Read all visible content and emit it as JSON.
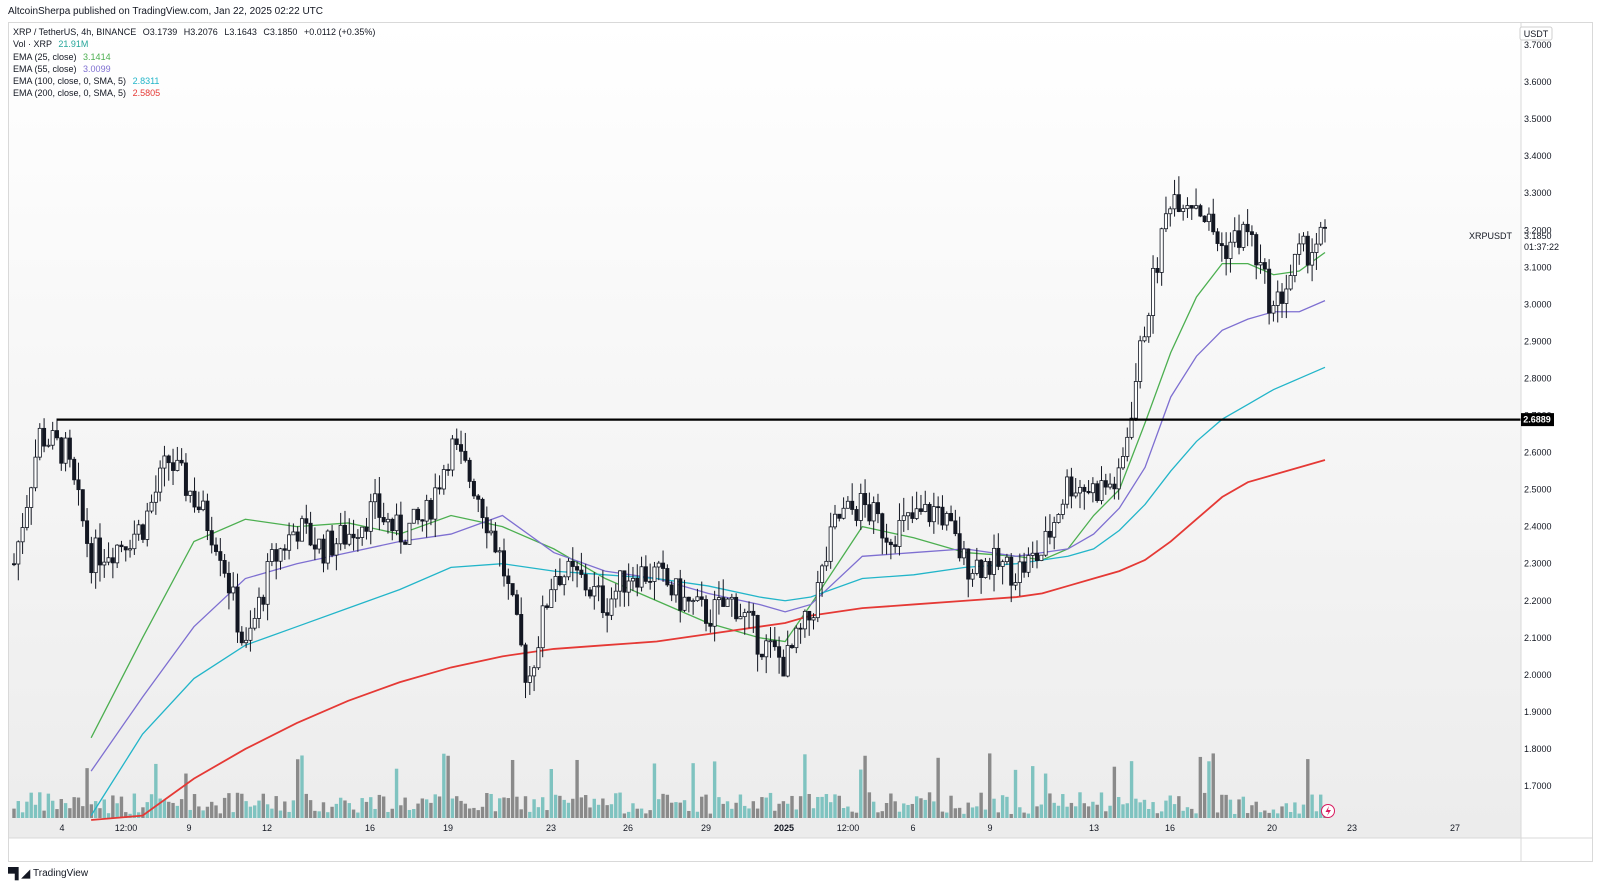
{
  "publisher": "AltcoinSherpa published on TradingView.com, Jan 22, 2025 02:22 UTC",
  "footer_brand": "TradingView",
  "legend": {
    "symbol_line": "XRP / TetherUS, 4h, BINANCE",
    "open": "O3.1739",
    "high": "H3.2076",
    "low": "L3.1643",
    "close": "C3.1850",
    "change": "+0.0112 (+0.35%)",
    "vol_label": "Vol · XRP",
    "vol_value": "21.91M",
    "ema1_label": "EMA (25, close)",
    "ema1_value": "3.1414",
    "ema2_label": "EMA (55, close)",
    "ema2_value": "3.0099",
    "ema3_label": "EMA (100, close, 0, SMA, 5)",
    "ema3_value": "2.8311",
    "ema4_label": "EMA (200, close, 0, SMA, 5)",
    "ema4_value": "2.5805"
  },
  "price_axis": {
    "currency": "USDT",
    "ticks": [
      "3.7000",
      "3.6000",
      "3.5000",
      "3.4000",
      "3.3000",
      "3.2000",
      "3.1000",
      "3.0000",
      "2.9000",
      "2.8000",
      "2.7000",
      "2.6000",
      "2.5000",
      "2.4000",
      "2.3000",
      "2.2000",
      "2.1000",
      "2.0000",
      "1.9000",
      "1.8000",
      "1.7000"
    ]
  },
  "time_axis": {
    "ticks": [
      "4",
      "12:00",
      "9",
      "12",
      "16",
      "19",
      "23",
      "26",
      "29",
      "2025",
      "12:00",
      "6",
      "9",
      "13",
      "16",
      "20",
      "23",
      "27"
    ]
  },
  "current_price": {
    "symbol": "XRPUSDT",
    "value": "3.1850",
    "countdown": "01:37:22"
  },
  "level_label": "2.6889",
  "colors": {
    "up": "#ffffff",
    "down": "#131722",
    "wick": "#131722",
    "ema25": "#4caf50",
    "ema55": "#7e6fd1",
    "ema100": "#22b5c9",
    "ema200": "#e53935",
    "vol_up": "#7fc3c0",
    "vol_down": "#8a8a8a",
    "level": "#000000",
    "background_gradient_end": "#ececec"
  },
  "chart_data": {
    "type": "candlestick",
    "symbol": "XRP / TetherUS",
    "interval": "4h",
    "exchange": "BINANCE",
    "ylim": [
      1.62,
      3.74
    ],
    "horizontal_level": 2.6889,
    "series": [
      {
        "name": "EMA (25, close)",
        "points": [
          [
            3,
            1.83
          ],
          [
            5,
            2.1
          ],
          [
            7,
            2.36
          ],
          [
            9,
            2.42
          ],
          [
            11,
            2.4
          ],
          [
            13,
            2.41
          ],
          [
            15,
            2.38
          ],
          [
            17,
            2.43
          ],
          [
            19,
            2.4
          ],
          [
            21,
            2.34
          ],
          [
            23,
            2.26
          ],
          [
            25,
            2.2
          ],
          [
            27,
            2.14
          ],
          [
            29,
            2.1
          ],
          [
            30,
            2.09
          ],
          [
            31,
            2.19
          ],
          [
            33,
            2.4
          ],
          [
            35,
            2.37
          ],
          [
            37,
            2.33
          ],
          [
            39,
            2.32
          ],
          [
            40,
            2.31
          ],
          [
            41,
            2.34
          ],
          [
            42,
            2.43
          ],
          [
            43,
            2.5
          ],
          [
            44,
            2.68
          ],
          [
            45,
            2.87
          ],
          [
            46,
            3.02
          ],
          [
            47,
            3.11
          ],
          [
            48,
            3.11
          ],
          [
            49,
            3.08
          ],
          [
            50,
            3.09
          ],
          [
            51,
            3.14
          ]
        ]
      },
      {
        "name": "EMA (55, close)",
        "points": [
          [
            3,
            1.74
          ],
          [
            5,
            1.94
          ],
          [
            7,
            2.13
          ],
          [
            9,
            2.26
          ],
          [
            11,
            2.3
          ],
          [
            13,
            2.33
          ],
          [
            15,
            2.36
          ],
          [
            17,
            2.38
          ],
          [
            19,
            2.43
          ],
          [
            21,
            2.33
          ],
          [
            23,
            2.28
          ],
          [
            25,
            2.26
          ],
          [
            27,
            2.22
          ],
          [
            29,
            2.19
          ],
          [
            30,
            2.17
          ],
          [
            31,
            2.19
          ],
          [
            33,
            2.32
          ],
          [
            35,
            2.33
          ],
          [
            37,
            2.34
          ],
          [
            39,
            2.32
          ],
          [
            40,
            2.33
          ],
          [
            41,
            2.34
          ],
          [
            42,
            2.38
          ],
          [
            43,
            2.45
          ],
          [
            44,
            2.56
          ],
          [
            45,
            2.75
          ],
          [
            46,
            2.86
          ],
          [
            47,
            2.93
          ],
          [
            48,
            2.96
          ],
          [
            49,
            2.98
          ],
          [
            50,
            2.98
          ],
          [
            51,
            3.01
          ]
        ]
      },
      {
        "name": "EMA (100, close, 0, SMA, 5)",
        "points": [
          [
            3,
            1.62
          ],
          [
            5,
            1.84
          ],
          [
            7,
            1.99
          ],
          [
            9,
            2.08
          ],
          [
            11,
            2.13
          ],
          [
            13,
            2.18
          ],
          [
            15,
            2.23
          ],
          [
            17,
            2.29
          ],
          [
            19,
            2.3
          ],
          [
            21,
            2.28
          ],
          [
            23,
            2.27
          ],
          [
            25,
            2.26
          ],
          [
            27,
            2.24
          ],
          [
            29,
            2.21
          ],
          [
            30,
            2.2
          ],
          [
            31,
            2.21
          ],
          [
            33,
            2.26
          ],
          [
            35,
            2.27
          ],
          [
            37,
            2.29
          ],
          [
            39,
            2.3
          ],
          [
            40,
            2.31
          ],
          [
            41,
            2.32
          ],
          [
            42,
            2.34
          ],
          [
            43,
            2.39
          ],
          [
            44,
            2.46
          ],
          [
            45,
            2.55
          ],
          [
            46,
            2.63
          ],
          [
            47,
            2.69
          ],
          [
            48,
            2.73
          ],
          [
            49,
            2.77
          ],
          [
            50,
            2.8
          ],
          [
            51,
            2.83
          ]
        ]
      },
      {
        "name": "EMA (200, close, 0, SMA, 5)",
        "points": [
          [
            3,
            1.52
          ],
          [
            5,
            1.62
          ],
          [
            7,
            1.72
          ],
          [
            9,
            1.8
          ],
          [
            11,
            1.87
          ],
          [
            13,
            1.93
          ],
          [
            15,
            1.98
          ],
          [
            17,
            2.02
          ],
          [
            19,
            2.05
          ],
          [
            21,
            2.07
          ],
          [
            23,
            2.08
          ],
          [
            25,
            2.09
          ],
          [
            27,
            2.11
          ],
          [
            29,
            2.13
          ],
          [
            30,
            2.14
          ],
          [
            31,
            2.16
          ],
          [
            33,
            2.18
          ],
          [
            35,
            2.19
          ],
          [
            37,
            2.2
          ],
          [
            39,
            2.21
          ],
          [
            40,
            2.22
          ],
          [
            41,
            2.24
          ],
          [
            42,
            2.26
          ],
          [
            43,
            2.28
          ],
          [
            44,
            2.31
          ],
          [
            45,
            2.36
          ],
          [
            46,
            2.42
          ],
          [
            47,
            2.48
          ],
          [
            48,
            2.52
          ],
          [
            49,
            2.54
          ],
          [
            50,
            2.56
          ],
          [
            51,
            2.58
          ]
        ]
      }
    ]
  }
}
